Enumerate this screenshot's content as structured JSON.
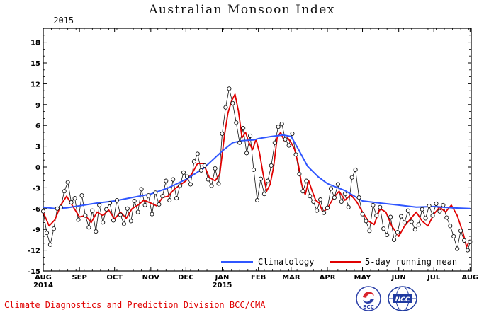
{
  "page": {
    "footer_text": "Climate Diagnostics and Prediction Division  BCC/CMA",
    "logos": [
      {
        "name": "bcc-logo",
        "text": "BCC"
      },
      {
        "name": "ncc-logo",
        "text": "NCC"
      }
    ]
  },
  "colors": {
    "climatology": "#2f56ff",
    "running_mean": "#e00000",
    "daily": "#111111",
    "footer": "#e00000"
  },
  "chart_data": {
    "type": "line",
    "title": "Australian Monsoon Index",
    "subtitle": "-2015-",
    "xlabel": "",
    "ylabel": "",
    "ylim": [
      -15,
      20
    ],
    "yticks": [
      -15,
      -12,
      -9,
      -6,
      -3,
      0,
      3,
      6,
      9,
      12,
      15,
      18
    ],
    "xlim": [
      0,
      366
    ],
    "xticks": [
      {
        "day": 0,
        "label": "AUG",
        "year": "2014"
      },
      {
        "day": 31,
        "label": "SEP"
      },
      {
        "day": 61,
        "label": "OCT"
      },
      {
        "day": 92,
        "label": "NOV"
      },
      {
        "day": 122,
        "label": "DEC"
      },
      {
        "day": 153,
        "label": "JAN",
        "year": "2015"
      },
      {
        "day": 184,
        "label": "FEB"
      },
      {
        "day": 212,
        "label": "MAR"
      },
      {
        "day": 243,
        "label": "APR"
      },
      {
        "day": 273,
        "label": "MAY"
      },
      {
        "day": 304,
        "label": "JUN"
      },
      {
        "day": 334,
        "label": "JUL"
      },
      {
        "day": 365,
        "label": "AUG"
      }
    ],
    "grid": false,
    "legend": "bottom-right",
    "series": [
      {
        "name": "Climatology",
        "style": "line",
        "x": [
          0,
          10,
          20,
          31,
          46,
          61,
          76,
          92,
          107,
          122,
          137,
          148,
          153,
          162,
          170,
          180,
          184,
          195,
          205,
          212,
          218,
          226,
          235,
          243,
          258,
          273,
          288,
          304,
          319,
          334,
          350,
          365
        ],
        "y": [
          -5.8,
          -6.0,
          -5.9,
          -5.6,
          -5.2,
          -4.9,
          -4.4,
          -3.9,
          -3.0,
          -1.8,
          -0.2,
          1.5,
          2.3,
          3.5,
          3.8,
          3.9,
          4.1,
          4.4,
          4.6,
          4.4,
          2.6,
          0.1,
          -1.4,
          -2.4,
          -3.4,
          -4.9,
          -5.2,
          -5.5,
          -5.8,
          -5.7,
          -5.9,
          -6.0
        ]
      },
      {
        "name": "5-day running mean",
        "style": "line",
        "x": [
          0,
          5,
          10,
          15,
          20,
          25,
          31,
          36,
          41,
          46,
          51,
          56,
          61,
          66,
          71,
          76,
          81,
          86,
          92,
          97,
          102,
          107,
          112,
          117,
          122,
          127,
          132,
          137,
          142,
          147,
          151,
          155,
          158,
          161,
          164,
          167,
          170,
          173,
          176,
          179,
          182,
          185,
          188,
          191,
          194,
          197,
          200,
          203,
          206,
          209,
          212,
          215,
          218,
          221,
          224,
          227,
          230,
          233,
          236,
          239,
          243,
          248,
          253,
          258,
          263,
          268,
          273,
          278,
          283,
          288,
          293,
          298,
          304,
          309,
          314,
          319,
          324,
          329,
          334,
          339,
          344,
          349,
          354,
          359,
          362,
          365
        ],
        "y": [
          -6.5,
          -8.5,
          -7.6,
          -5.5,
          -4.2,
          -5.6,
          -7.2,
          -7.0,
          -8.0,
          -6.5,
          -7.0,
          -6.2,
          -7.5,
          -6.5,
          -7.4,
          -6.0,
          -5.5,
          -4.8,
          -5.2,
          -5.6,
          -4.4,
          -4.2,
          -3.2,
          -2.6,
          -2.0,
          -1.0,
          0.5,
          0.5,
          -1.5,
          -2.0,
          -1.0,
          4.6,
          7.8,
          9.5,
          10.5,
          8.0,
          4.2,
          5.0,
          3.5,
          2.5,
          4.0,
          2.0,
          -1.0,
          -3.5,
          -2.5,
          0.0,
          4.2,
          5.0,
          3.8,
          4.2,
          3.5,
          2.5,
          0.5,
          -2.5,
          -4.0,
          -2.0,
          -3.5,
          -4.8,
          -5.2,
          -6.5,
          -6.0,
          -4.5,
          -3.5,
          -4.8,
          -4.0,
          -5.0,
          -6.5,
          -7.8,
          -8.3,
          -6.0,
          -6.5,
          -8.5,
          -10.0,
          -8.5,
          -7.5,
          -6.5,
          -7.8,
          -8.5,
          -6.8,
          -5.8,
          -6.5,
          -5.5,
          -7.0,
          -9.5,
          -11.5,
          -10.5
        ]
      },
      {
        "name": "daily",
        "style": "markers",
        "x": [
          0,
          3,
          6,
          9,
          12,
          15,
          18,
          21,
          24,
          27,
          30,
          33,
          36,
          39,
          42,
          45,
          48,
          51,
          54,
          57,
          60,
          63,
          66,
          69,
          72,
          75,
          78,
          81,
          84,
          87,
          90,
          93,
          96,
          99,
          102,
          105,
          108,
          111,
          114,
          117,
          120,
          123,
          126,
          129,
          132,
          135,
          138,
          141,
          144,
          147,
          150,
          153,
          156,
          159,
          162,
          165,
          168,
          171,
          174,
          177,
          180,
          183,
          186,
          189,
          192,
          195,
          198,
          201,
          204,
          207,
          210,
          213,
          216,
          219,
          222,
          225,
          228,
          231,
          234,
          237,
          240,
          243,
          246,
          249,
          252,
          255,
          258,
          261,
          264,
          267,
          270,
          273,
          276,
          279,
          282,
          285,
          288,
          291,
          294,
          297,
          300,
          303,
          306,
          309,
          312,
          315,
          318,
          321,
          324,
          327,
          330,
          333,
          336,
          339,
          342,
          345,
          348,
          351,
          354,
          357,
          360,
          363,
          365
        ],
        "y": [
          -6.4,
          -9.5,
          -11.2,
          -8.9,
          -6.0,
          -5.8,
          -3.5,
          -2.2,
          -5.1,
          -4.5,
          -7.6,
          -4.1,
          -7.0,
          -8.7,
          -6.3,
          -9.3,
          -5.5,
          -8.0,
          -6.1,
          -5.2,
          -7.7,
          -4.8,
          -6.9,
          -8.2,
          -6.0,
          -7.8,
          -4.9,
          -6.5,
          -3.2,
          -5.5,
          -4.1,
          -6.8,
          -3.7,
          -5.4,
          -4.2,
          -2.0,
          -4.8,
          -1.8,
          -4.5,
          -2.7,
          -0.8,
          -1.4,
          -2.5,
          0.8,
          1.9,
          -0.5,
          0.2,
          -1.8,
          -2.7,
          -0.2,
          -2.4,
          4.8,
          8.6,
          11.3,
          9.2,
          6.4,
          3.5,
          5.6,
          2.0,
          4.5,
          -0.4,
          -4.8,
          -1.7,
          -3.9,
          -2.0,
          0.2,
          3.5,
          5.8,
          6.2,
          4.0,
          3.1,
          4.8,
          1.8,
          -1.0,
          -3.5,
          -2.0,
          -4.2,
          -5.0,
          -6.3,
          -4.7,
          -6.6,
          -5.9,
          -3.1,
          -4.4,
          -2.5,
          -5.0,
          -3.9,
          -5.8,
          -1.5,
          -0.4,
          -4.4,
          -6.8,
          -7.8,
          -9.2,
          -5.5,
          -7.0,
          -5.8,
          -8.9,
          -9.8,
          -7.2,
          -10.5,
          -9.4,
          -7.1,
          -8.0,
          -6.3,
          -7.9,
          -9.0,
          -8.3,
          -6.1,
          -7.4,
          -5.6,
          -7.0,
          -5.3,
          -6.4,
          -5.5,
          -7.3,
          -8.5,
          -10.0,
          -11.8,
          -9.2,
          -10.6,
          -12.0,
          -10.8
        ]
      }
    ]
  }
}
